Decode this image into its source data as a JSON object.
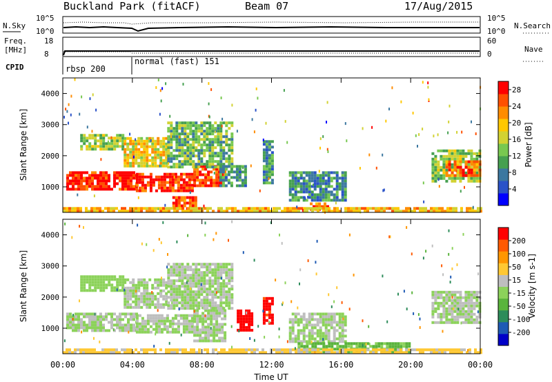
{
  "header": {
    "station": "Buckland Park (fitACF)",
    "beam": "Beam 07",
    "date": "17/Aug/2015"
  },
  "top_panels": {
    "nsky_label": "N.Sky",
    "nsearch_label": "N.Search",
    "freq_label_1": "Freq.",
    "freq_label_2": "[MHz]",
    "nave_label": "Nave",
    "cpid_label": "CPID",
    "noise_ticks_left": [
      "10^5",
      "10^0"
    ],
    "noise_ticks_right": [
      "10^5",
      "10^0"
    ],
    "freq_ticks": [
      "18",
      "8"
    ],
    "nave_ticks": [
      "60",
      "0"
    ],
    "cpid_segments": [
      {
        "label": "rbsp 200",
        "start_hour": 0,
        "end_hour": 4
      },
      {
        "label": "normal (fast) 151",
        "start_hour": 4,
        "end_hour": 24
      }
    ]
  },
  "chart_data": [
    {
      "type": "heatmap",
      "title": "",
      "ylabel": "Slant Range [km]",
      "xlabel": "",
      "xlim_hours": [
        0,
        24
      ],
      "ylim": [
        180,
        4500
      ],
      "yticks": [
        "1000",
        "2000",
        "3000",
        "4000"
      ],
      "colorbar": {
        "label": "Power [dB]",
        "ticks": [
          "4",
          "8",
          "12",
          "16",
          "20",
          "24",
          "28"
        ],
        "range": [
          0,
          30
        ],
        "colors": [
          "#0000ff",
          "#2a52c8",
          "#3c78a0",
          "#46a050",
          "#78c850",
          "#d2d232",
          "#ffc800",
          "#ff8c00",
          "#ff5000",
          "#ff0000"
        ]
      },
      "echo_regions": [
        {
          "t0": 0.2,
          "t1": 4.2,
          "r0": 900,
          "r1": 1500,
          "level": 28
        },
        {
          "t0": 4.2,
          "t1": 7.5,
          "r0": 900,
          "r1": 1450,
          "level": 27
        },
        {
          "t0": 7.5,
          "t1": 9.4,
          "r0": 1050,
          "r1": 1700,
          "level": 26
        },
        {
          "t0": 6.3,
          "t1": 7.6,
          "r0": 300,
          "r1": 700,
          "level": 27
        },
        {
          "t0": 1.0,
          "t1": 3.5,
          "r0": 2200,
          "r1": 2700,
          "level": 14
        },
        {
          "t0": 3.5,
          "t1": 6.0,
          "r0": 1700,
          "r1": 2600,
          "level": 18
        },
        {
          "t0": 6.0,
          "t1": 9.8,
          "r0": 1600,
          "r1": 3100,
          "level": 12
        },
        {
          "t0": 9.0,
          "t1": 10.5,
          "r0": 1000,
          "r1": 1700,
          "level": 10
        },
        {
          "t0": 11.5,
          "t1": 12.0,
          "r0": 1100,
          "r1": 2500,
          "level": 10
        },
        {
          "t0": 13.0,
          "t1": 16.2,
          "r0": 600,
          "r1": 1500,
          "level": 9
        },
        {
          "t0": 14.2,
          "t1": 15.2,
          "r0": 250,
          "r1": 500,
          "level": 24
        },
        {
          "t0": 21.2,
          "t1": 24.0,
          "r0": 1200,
          "r1": 2200,
          "level": 14
        },
        {
          "t0": 22.0,
          "t1": 24.0,
          "r0": 1350,
          "r1": 1850,
          "level": 25
        },
        {
          "t0": 0.0,
          "t1": 24.0,
          "r0": 180,
          "r1": 350,
          "level": 20
        }
      ]
    },
    {
      "type": "heatmap",
      "title": "",
      "ylabel": "Slant Range [km]",
      "xlabel": "Time UT",
      "xlim_hours": [
        0,
        24
      ],
      "ylim": [
        180,
        4500
      ],
      "xticks": [
        "00:00",
        "04:00",
        "08:00",
        "12:00",
        "16:00",
        "20:00",
        "00:00"
      ],
      "yticks": [
        "1000",
        "2000",
        "3000",
        "4000"
      ],
      "colorbar": {
        "label": "Velocity [m s-1]",
        "ticks": [
          "200",
          "100",
          "50",
          "15",
          "-15",
          "-50",
          "-100",
          "-200"
        ],
        "range": [
          -250,
          250
        ],
        "colors": [
          "#0000c8",
          "#1e5ab4",
          "#2d8c5a",
          "#5ab43c",
          "#8cd25a",
          "#bebebe",
          "#ffc832",
          "#ff9600",
          "#ff5a00",
          "#ff0000"
        ]
      },
      "echo_regions": [
        {
          "t0": 0.2,
          "t1": 4.2,
          "r0": 900,
          "r1": 1500,
          "velocity": 0
        },
        {
          "t0": 4.2,
          "t1": 7.5,
          "r0": 900,
          "r1": 1450,
          "velocity": 0
        },
        {
          "t0": 7.5,
          "t1": 9.4,
          "r0": 600,
          "r1": 1700,
          "velocity": 0
        },
        {
          "t0": 1.0,
          "t1": 3.5,
          "r0": 2200,
          "r1": 2700,
          "velocity": -20
        },
        {
          "t0": 3.5,
          "t1": 6.0,
          "r0": 1700,
          "r1": 2600,
          "velocity": 0
        },
        {
          "t0": 6.0,
          "t1": 9.8,
          "r0": 1600,
          "r1": 3100,
          "velocity": 0
        },
        {
          "t0": 10.0,
          "t1": 10.9,
          "r0": 900,
          "r1": 1600,
          "velocity": 220
        },
        {
          "t0": 11.5,
          "t1": 12.0,
          "r0": 1200,
          "r1": 2000,
          "velocity": 210
        },
        {
          "t0": 13.0,
          "t1": 16.2,
          "r0": 600,
          "r1": 1500,
          "velocity": 0
        },
        {
          "t0": 13.5,
          "t1": 20.0,
          "r0": 250,
          "r1": 550,
          "velocity": -60
        },
        {
          "t0": 21.2,
          "t1": 24.0,
          "r0": 1200,
          "r1": 2200,
          "velocity": 0
        },
        {
          "t0": 0.0,
          "t1": 24.0,
          "r0": 180,
          "r1": 350,
          "velocity": 60
        }
      ]
    }
  ]
}
